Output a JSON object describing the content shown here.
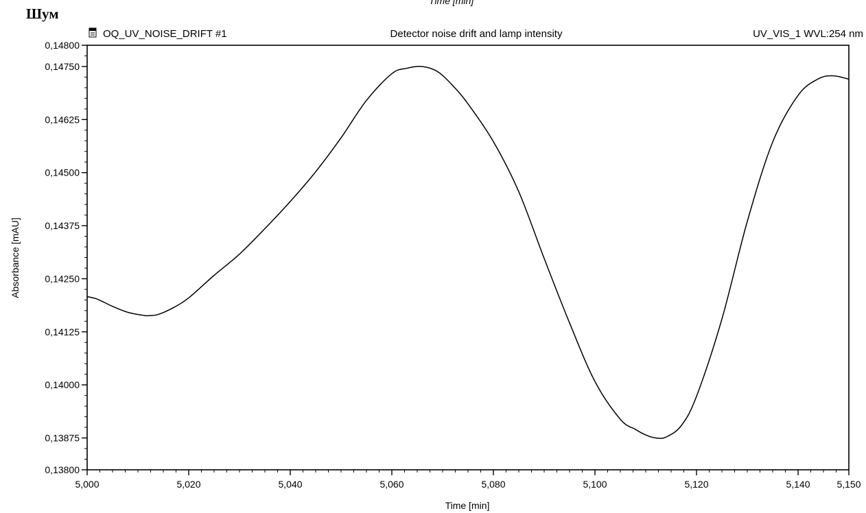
{
  "page": {
    "heading": "Шум",
    "top_caption_cut": "Time [min]"
  },
  "chart_header": {
    "left": "OQ_UV_NOISE_DRIFT #1",
    "center": "Detector noise drift and lamp intensity",
    "right": "UV_VIS_1 WVL:254 nm"
  },
  "chart_data": {
    "type": "line",
    "xlabel": "Time [min]",
    "ylabel": "Absorbance [mAU]",
    "xlim": [
      5.0,
      5.15
    ],
    "ylim": [
      0.138,
      0.148
    ],
    "x_ticks": [
      5.0,
      5.02,
      5.04,
      5.06,
      5.08,
      5.1,
      5.12,
      5.14,
      5.15
    ],
    "x_tick_labels": [
      "5,000",
      "5,020",
      "5,040",
      "5,060",
      "5,080",
      "5,100",
      "5,120",
      "5,140",
      "5,150"
    ],
    "y_ticks": [
      0.138,
      0.13875,
      0.14,
      0.14125,
      0.1425,
      0.14375,
      0.145,
      0.14625,
      0.1475,
      0.148
    ],
    "y_tick_labels": [
      "0,13800",
      "0,13875",
      "0,14000",
      "0,14125",
      "0,14250",
      "0,14375",
      "0,14500",
      "0,14625",
      "0,14750",
      "0,14800"
    ],
    "grid": false,
    "series": [
      {
        "color": "#000000",
        "x": [
          5.0,
          5.002,
          5.005,
          5.008,
          5.011,
          5.012,
          5.014,
          5.017,
          5.02,
          5.025,
          5.03,
          5.035,
          5.04,
          5.045,
          5.05,
          5.055,
          5.06,
          5.063,
          5.066,
          5.069,
          5.072,
          5.075,
          5.08,
          5.085,
          5.09,
          5.095,
          5.1,
          5.105,
          5.108,
          5.11,
          5.112,
          5.114,
          5.117,
          5.12,
          5.125,
          5.13,
          5.135,
          5.14,
          5.144,
          5.147,
          5.15
        ],
        "y": [
          0.14208,
          0.14202,
          0.14185,
          0.14171,
          0.14164,
          0.14163,
          0.14166,
          0.14182,
          0.14205,
          0.14258,
          0.14308,
          0.14368,
          0.14432,
          0.14502,
          0.14582,
          0.1467,
          0.14733,
          0.14746,
          0.1475,
          0.14738,
          0.14705,
          0.14662,
          0.14573,
          0.14455,
          0.14298,
          0.14146,
          0.14008,
          0.13919,
          0.13895,
          0.13882,
          0.13875,
          0.13877,
          0.13904,
          0.13973,
          0.14155,
          0.14385,
          0.14572,
          0.14682,
          0.14721,
          0.14728,
          0.1472
        ]
      }
    ]
  }
}
